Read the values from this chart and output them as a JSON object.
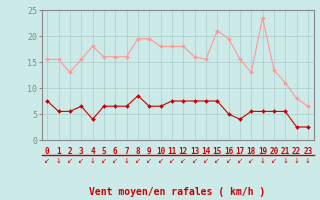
{
  "hours": [
    0,
    1,
    2,
    3,
    4,
    5,
    6,
    7,
    8,
    9,
    10,
    11,
    12,
    13,
    14,
    15,
    16,
    17,
    18,
    19,
    20,
    21,
    22,
    23
  ],
  "wind_avg": [
    7.5,
    5.5,
    5.5,
    6.5,
    4.0,
    6.5,
    6.5,
    6.5,
    8.5,
    6.5,
    6.5,
    7.5,
    7.5,
    7.5,
    7.5,
    7.5,
    5.0,
    4.0,
    5.5,
    5.5,
    5.5,
    5.5,
    2.5,
    2.5
  ],
  "wind_gust": [
    15.5,
    15.5,
    13.0,
    15.5,
    18.0,
    16.0,
    16.0,
    16.0,
    19.5,
    19.5,
    18.0,
    18.0,
    18.0,
    16.0,
    15.5,
    21.0,
    19.5,
    15.5,
    13.0,
    23.5,
    13.5,
    11.0,
    8.0,
    6.5
  ],
  "avg_color": "#cc0000",
  "gust_color": "#ff9999",
  "bg_color": "#cceae8",
  "grid_color": "#aacccc",
  "xlabel": "Vent moyen/en rafales ( km/h )",
  "ylim": [
    0,
    25
  ],
  "yticks": [
    0,
    5,
    10,
    15,
    20,
    25
  ],
  "arrow_chars": [
    "↙",
    "↓",
    "↙",
    "↙",
    "↓",
    "↙",
    "↙",
    "↓",
    "↙",
    "↙",
    "↙",
    "↙",
    "↙",
    "↙",
    "↙",
    "↙",
    "↙",
    "↙",
    "↙",
    "↓",
    "↙",
    "↓",
    "↓",
    "↓"
  ]
}
